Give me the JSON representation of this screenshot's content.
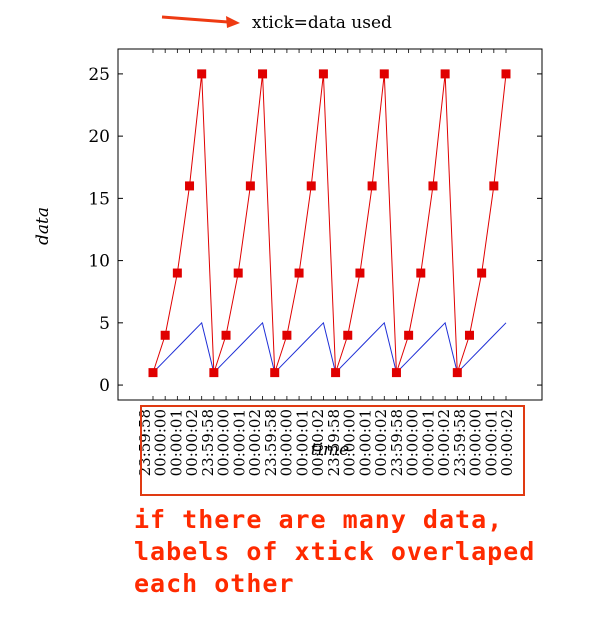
{
  "legend": {
    "label": "xtick=data used",
    "arrow_color": "#ee3a12"
  },
  "chart_data": {
    "type": "line",
    "ylabel": "data",
    "xlabel": "time",
    "ylim": [
      -1.2,
      27
    ],
    "yticks": [
      0,
      5,
      10,
      15,
      20,
      25
    ],
    "x_tick_labels": [
      "23:59:58",
      "00:00:00",
      "00:00:01",
      "00:00:02",
      "23:59:58",
      "00:00:00",
      "00:00:01",
      "00:00:02",
      "23:59:58",
      "00:00:00",
      "00:00:01",
      "00:00:02",
      "23:59:58",
      "00:00:00",
      "00:00:01",
      "00:00:02",
      "23:59:58",
      "00:00:00",
      "00:00:01",
      "00:00:02",
      "23:59:58",
      "00:00:00",
      "00:00:01",
      "00:00:02"
    ],
    "series": [
      {
        "color": "#1f2fd6",
        "marker": "none",
        "values": [
          1,
          2,
          3,
          4,
          5,
          1,
          2,
          3,
          4,
          5,
          1,
          2,
          3,
          4,
          5,
          1,
          2,
          3,
          4,
          5,
          1,
          2,
          3,
          4,
          5,
          1,
          2,
          3,
          4,
          5
        ]
      },
      {
        "color": "#e00000",
        "marker": "square",
        "values": [
          1,
          4,
          9,
          16,
          25,
          1,
          4,
          9,
          16,
          25,
          1,
          4,
          9,
          16,
          25,
          1,
          4,
          9,
          16,
          25,
          1,
          4,
          9,
          16,
          25,
          1,
          4,
          9,
          16,
          25
        ]
      }
    ],
    "tick_box_color": "#e03a12"
  },
  "annotation": {
    "lines": [
      "if there are many data,",
      "labels of xtick overlaped",
      "each other"
    ],
    "color": "#ff2a00"
  }
}
